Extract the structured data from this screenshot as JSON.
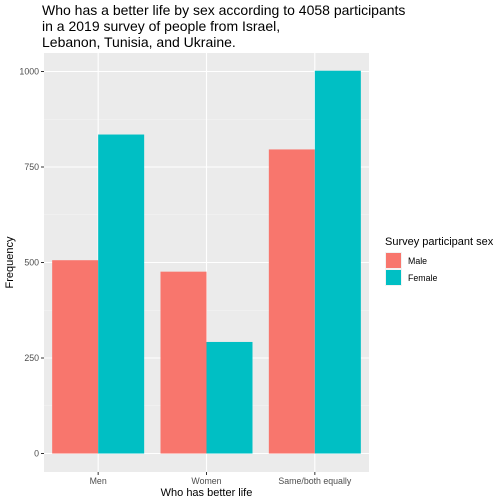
{
  "chart_data": {
    "type": "bar",
    "title_lines": [
      "Who has a better life by sex according to 4058 participants",
      "in a 2019 survey of people from Israel,",
      "Lebanon, Tunisia, and Ukraine."
    ],
    "xlabel": "Who has better life",
    "ylabel": "Frequency",
    "categories": [
      "Men",
      "Women",
      "Same/both equally"
    ],
    "series": [
      {
        "name": "Male",
        "color": "#F8766D",
        "values": [
          506,
          476,
          796
        ]
      },
      {
        "name": "Female",
        "color": "#00BFC4",
        "values": [
          835,
          292,
          1002
        ]
      }
    ],
    "ylim": [
      0,
      1040
    ],
    "yticks": [
      0,
      250,
      500,
      750,
      1000
    ],
    "yticklabels": [
      "0",
      "250",
      "500",
      "750",
      "1000"
    ],
    "grid": true,
    "legend": {
      "title": "Survey participant sex",
      "placement": "right"
    }
  }
}
